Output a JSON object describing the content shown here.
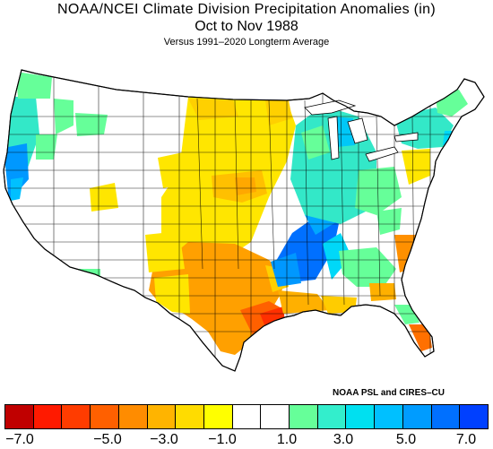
{
  "title": "NOAA/NCEI Climate Division Precipitation Anomalies (in)",
  "subtitle": "Oct to Nov 1988",
  "subtitle2": "Versus 1991–2020 Longterm Average",
  "credit": "NOAA PSL and CIRES–CU",
  "colors": {
    "dark_red": "#c00000",
    "red": "#ff1a00",
    "red_orange": "#ff5000",
    "orange": "#ff9000",
    "light_orange": "#ffb000",
    "yellow_orange": "#ffd000",
    "yellow": "#ffff00",
    "none": "#ffffff",
    "light_green": "#66ff99",
    "turquoise": "#33e8c8",
    "cyan": "#00d8f8",
    "sky_blue": "#00a8ff",
    "blue": "#0070ff",
    "dark_blue": "#0030ff"
  },
  "colorbar": {
    "colors": [
      "#c00000",
      "#ff1a00",
      "#ff3c00",
      "#ff6000",
      "#ff8c00",
      "#ffb400",
      "#ffdc00",
      "#ffff00",
      "#ffffff",
      "#ffffff",
      "#66ff99",
      "#33eecc",
      "#00e0f0",
      "#00c0ff",
      "#009cff",
      "#0070ff",
      "#0040ff"
    ],
    "labels": [
      "−7.0",
      "−5.0",
      "−3.0",
      "−1.0",
      "1.0",
      "3.0",
      "5.0",
      "7.0"
    ]
  }
}
